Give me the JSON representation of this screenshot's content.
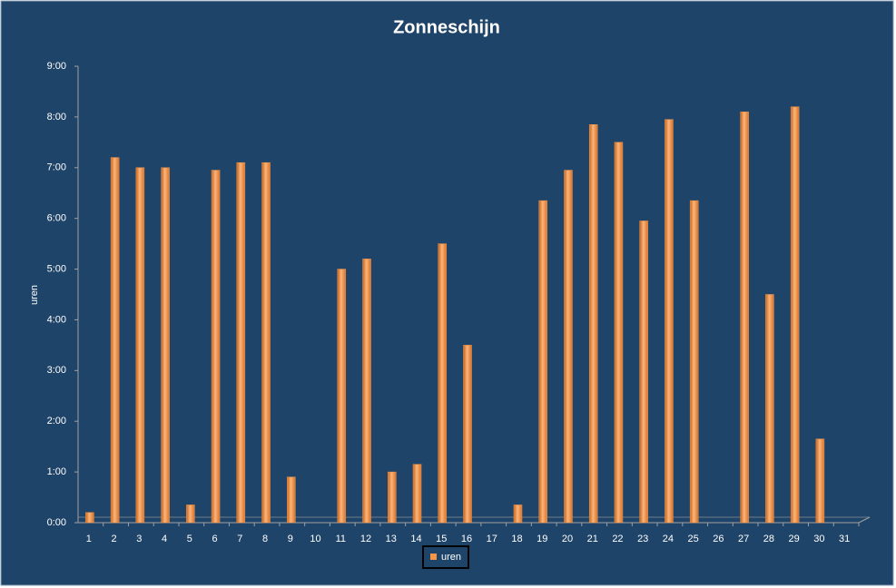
{
  "chart_data": {
    "type": "bar",
    "title": "Zonneschijn",
    "y_label": "uren",
    "categories": [
      "1",
      "2",
      "3",
      "4",
      "5",
      "6",
      "7",
      "8",
      "9",
      "10",
      "11",
      "12",
      "13",
      "14",
      "15",
      "16",
      "17",
      "18",
      "19",
      "20",
      "21",
      "22",
      "23",
      "24",
      "25",
      "26",
      "27",
      "28",
      "29",
      "30",
      "31"
    ],
    "series": [
      {
        "name": "uren",
        "color": "#f79646",
        "values": [
          0.2,
          7.2,
          7.0,
          7.0,
          0.35,
          6.95,
          7.1,
          7.1,
          0.9,
          0,
          5.0,
          5.2,
          1.0,
          1.15,
          5.5,
          3.5,
          0,
          0.35,
          6.35,
          6.95,
          7.85,
          7.5,
          5.95,
          7.95,
          6.35,
          0,
          8.1,
          4.5,
          8.2,
          1.65,
          0
        ]
      }
    ],
    "ylim": [
      0,
      9
    ],
    "yticks": [
      {
        "value": 0,
        "label": "0:00"
      },
      {
        "value": 1,
        "label": "1:00"
      },
      {
        "value": 2,
        "label": "2:00"
      },
      {
        "value": 3,
        "label": "3:00"
      },
      {
        "value": 4,
        "label": "4:00"
      },
      {
        "value": 5,
        "label": "5:00"
      },
      {
        "value": 6,
        "label": "6:00"
      },
      {
        "value": 7,
        "label": "7:00"
      },
      {
        "value": 8,
        "label": "8:00"
      },
      {
        "value": 9,
        "label": "9:00"
      }
    ],
    "legend": "bottom"
  }
}
